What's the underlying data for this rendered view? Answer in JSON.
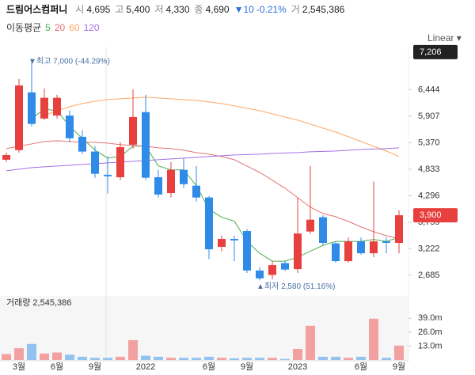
{
  "header": {
    "name": "드림어스컴퍼니",
    "fields": [
      {
        "label": "시",
        "value": "4,695"
      },
      {
        "label": "고",
        "value": "5,400"
      },
      {
        "label": "저",
        "value": "4,330"
      },
      {
        "label": "종",
        "value": "4,690"
      }
    ],
    "change": "▼10",
    "change_pct": "-0.21%",
    "volume_label": "거",
    "volume": "2,545,386"
  },
  "toolbar": {
    "ma_title": "이동평균",
    "scale_button": "Linear ▾"
  },
  "chart_data": {
    "type": "candlestick",
    "categories": [
      null,
      "3월",
      null,
      null,
      "6월",
      null,
      null,
      "9월",
      null,
      null,
      null,
      "2022",
      null,
      null,
      null,
      null,
      "6월",
      null,
      null,
      "9월",
      null,
      null,
      null,
      "2023",
      null,
      null,
      null,
      null,
      "6월",
      null,
      null,
      "9월"
    ],
    "open": [
      5025,
      5220,
      6390,
      5860,
      5920,
      5920,
      5490,
      5190,
      4720,
      4670,
      5330,
      5990,
      4670,
      4350,
      4820,
      4500,
      4260,
      3260,
      3420,
      3580,
      2780,
      2690,
      2930,
      2810,
      3570,
      3860,
      3330,
      2970,
      3370,
      3130,
      3370,
      3340
    ],
    "high": [
      5170,
      6660,
      7000,
      6470,
      6340,
      6020,
      5620,
      5300,
      5090,
      5380,
      6450,
      6340,
      4820,
      4980,
      5060,
      4900,
      4290,
      3490,
      3490,
      3620,
      2850,
      2970,
      2970,
      4260,
      4900,
      3900,
      3370,
      3450,
      3450,
      4580,
      3450,
      4000
    ],
    "low": [
      4980,
      5170,
      5700,
      5830,
      5860,
      5380,
      5140,
      4660,
      4340,
      4610,
      5250,
      4610,
      4260,
      4260,
      4450,
      4180,
      3010,
      3170,
      2970,
      2730,
      2580,
      2600,
      2770,
      2730,
      3520,
      3290,
      2940,
      2940,
      3100,
      3050,
      3130,
      3130
    ],
    "close": [
      5120,
      6530,
      5750,
      6280,
      6280,
      5460,
      5190,
      4740,
      4690,
      5280,
      5890,
      4660,
      4320,
      4820,
      4530,
      4260,
      3210,
      3420,
      3390,
      2780,
      2620,
      2890,
      2800,
      3530,
      3810,
      3340,
      2970,
      3370,
      3130,
      3370,
      3340,
      3900
    ],
    "up_color": "#e8403f",
    "down_color": "#2f8ae8",
    "moving_averages": [
      {
        "name": "5",
        "color": "#4caf50",
        "values": [
          null,
          null,
          5860,
          6050,
          6020,
          5700,
          5460,
          5220,
          5060,
          5090,
          5300,
          5300,
          4900,
          4820,
          4820,
          4500,
          4020,
          3860,
          3780,
          3370,
          3130,
          2970,
          2970,
          3050,
          3170,
          3290,
          3370,
          3370,
          3370,
          3410,
          3370,
          3450
        ]
      },
      {
        "name": "20",
        "color": "#e57373",
        "values": [
          5250,
          5300,
          5345,
          5394,
          5410,
          5394,
          5378,
          5378,
          5362,
          5330,
          5314,
          5298,
          5266,
          5250,
          5218,
          5170,
          5138,
          5090,
          5025,
          4897,
          4769,
          4609,
          4448,
          4256,
          4064,
          3935,
          3871,
          3775,
          3663,
          3567,
          3486,
          3422
        ]
      },
      {
        "name": "60",
        "color": "#ffa866",
        "values": [
          null,
          null,
          null,
          5923,
          6019,
          6099,
          6164,
          6212,
          6244,
          6260,
          6276,
          6292,
          6276,
          6260,
          6244,
          6228,
          6196,
          6164,
          6115,
          6067,
          6019,
          5955,
          5891,
          5827,
          5747,
          5667,
          5587,
          5490,
          5394,
          5298,
          5202,
          5090
        ]
      },
      {
        "name": "120",
        "color": "#a66ee8",
        "values": [
          4801,
          4833,
          4865,
          4881,
          4897,
          4913,
          4929,
          4945,
          4961,
          4977,
          4993,
          5009,
          5025,
          5041,
          5057,
          5073,
          5090,
          5106,
          5122,
          5130,
          5138,
          5154,
          5162,
          5170,
          5186,
          5194,
          5202,
          5218,
          5234,
          5242,
          5250,
          5266
        ]
      }
    ],
    "ylim": [
      2330,
      7300
    ],
    "yticks": [
      {
        "value": 2685,
        "label": "2,685"
      },
      {
        "value": 3222,
        "label": "3,222"
      },
      {
        "value": 3759,
        "label": "3,759"
      },
      {
        "value": 4296,
        "label": "4,296"
      },
      {
        "value": 4833,
        "label": "4,833"
      },
      {
        "value": 5370,
        "label": "5,370"
      },
      {
        "value": 5907,
        "label": "5,907"
      },
      {
        "value": 6444,
        "label": "6,444"
      }
    ],
    "price_markers": [
      {
        "value": 7206,
        "label": "7,206",
        "color": "#222222"
      },
      {
        "value": 3900,
        "label": "3,900",
        "color": "#e8403f"
      }
    ],
    "annotations": {
      "high": "▼최고 7,000 (-44.29%)",
      "low": "▲최저 2,580 (51.16%)"
    },
    "volume_title": "거래량 2,545,386",
    "volume": [
      5500000,
      11000000,
      15000000,
      6000000,
      7000000,
      5000000,
      3000000,
      2000000,
      2000000,
      3000000,
      18500000,
      4000000,
      3000000,
      2000000,
      2000000,
      2000000,
      3000000,
      2000000,
      1500000,
      2000000,
      2000000,
      2000000,
      1000000,
      10400000,
      32000000,
      3000000,
      3000000,
      2000000,
      3000000,
      38600000,
      2000000,
      13400000
    ],
    "volume_up_color": "#f2a0a0",
    "volume_down_color": "#92c3f0",
    "vlim": [
      0,
      57000000
    ],
    "vticks": [
      {
        "value": 13000000,
        "label": "13.0m"
      },
      {
        "value": 26000000,
        "label": "26.0m"
      },
      {
        "value": 39000000,
        "label": "39.0m"
      }
    ]
  }
}
